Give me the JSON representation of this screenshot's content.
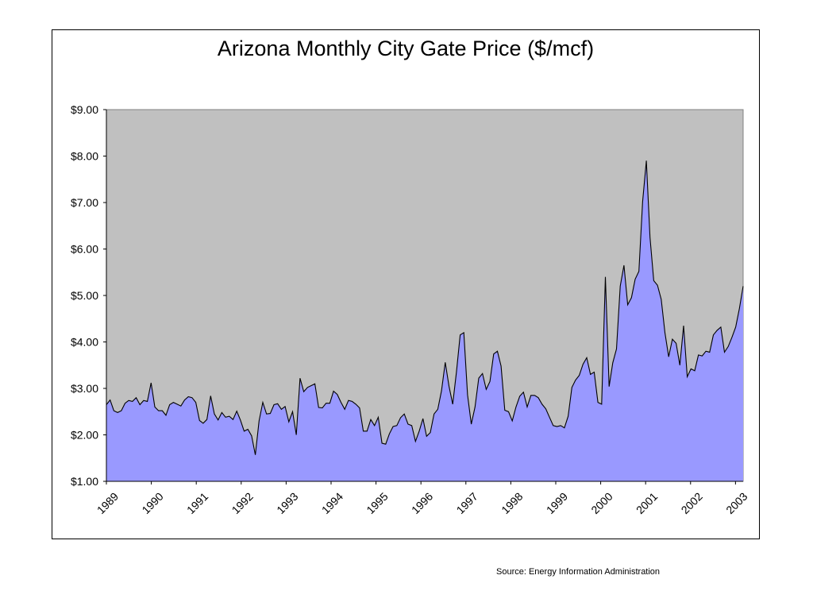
{
  "chart_data": {
    "type": "area",
    "title": "Arizona Monthly City Gate Price ($/mcf)",
    "xlabel": "",
    "ylabel": "",
    "ylim": [
      1.0,
      9.0
    ],
    "xlim": [
      1989.0,
      2003.17
    ],
    "y_ticks": [
      "$1.00",
      "$2.00",
      "$3.00",
      "$4.00",
      "$5.00",
      "$6.00",
      "$7.00",
      "$8.00",
      "$9.00"
    ],
    "x_ticks": [
      "1989",
      "1990",
      "1991",
      "1992",
      "1993",
      "1994",
      "1995",
      "1996",
      "1997",
      "1998",
      "1999",
      "2000",
      "2001",
      "2002",
      "2003"
    ],
    "plot_background": "#c0c0c0",
    "series": [
      {
        "fill": "#9999ff",
        "line": "#000000",
        "values": [
          2.65,
          2.75,
          2.52,
          2.48,
          2.52,
          2.68,
          2.74,
          2.72,
          2.8,
          2.65,
          2.74,
          2.72,
          3.12,
          2.6,
          2.52,
          2.52,
          2.42,
          2.65,
          2.7,
          2.66,
          2.62,
          2.75,
          2.82,
          2.8,
          2.7,
          2.31,
          2.25,
          2.33,
          2.84,
          2.45,
          2.32,
          2.48,
          2.38,
          2.4,
          2.33,
          2.51,
          2.32,
          2.08,
          2.12,
          1.98,
          1.57,
          2.3,
          2.7,
          2.45,
          2.46,
          2.65,
          2.67,
          2.55,
          2.61,
          2.28,
          2.5,
          2.0,
          3.22,
          2.93,
          3.02,
          3.06,
          3.1,
          2.59,
          2.58,
          2.68,
          2.68,
          2.94,
          2.87,
          2.7,
          2.55,
          2.74,
          2.72,
          2.66,
          2.58,
          2.08,
          2.08,
          2.33,
          2.2,
          2.38,
          1.82,
          1.8,
          2.02,
          2.18,
          2.2,
          2.37,
          2.45,
          2.23,
          2.2,
          1.86,
          2.08,
          2.35,
          1.97,
          2.05,
          2.45,
          2.55,
          2.95,
          3.56,
          3.05,
          2.66,
          3.35,
          4.15,
          4.2,
          2.86,
          2.23,
          2.6,
          3.22,
          3.32,
          2.98,
          3.15,
          3.74,
          3.8,
          3.48,
          2.53,
          2.5,
          2.3,
          2.6,
          2.83,
          2.92,
          2.6,
          2.85,
          2.85,
          2.8,
          2.66,
          2.56,
          2.38,
          2.2,
          2.18,
          2.2,
          2.15,
          2.4,
          3.02,
          3.18,
          3.28,
          3.52,
          3.66,
          3.3,
          3.35,
          2.7,
          2.66,
          5.4,
          3.04,
          3.55,
          3.85,
          5.2,
          5.65,
          4.8,
          4.95,
          5.35,
          5.52,
          7.02,
          7.9,
          6.25,
          5.32,
          5.22,
          4.92,
          4.2,
          3.68,
          4.06,
          3.97,
          3.5,
          4.35,
          3.25,
          3.42,
          3.38,
          3.72,
          3.7,
          3.8,
          3.78,
          4.15,
          4.25,
          4.32,
          3.78,
          3.9,
          4.1,
          4.32,
          4.72,
          5.2
        ]
      }
    ]
  },
  "source": "Source:  Energy Information Administration"
}
